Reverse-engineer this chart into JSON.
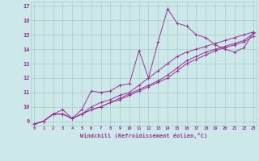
{
  "xlabel": "Windchill (Refroidissement éolien,°C)",
  "x_values": [
    0,
    1,
    2,
    3,
    4,
    5,
    6,
    7,
    8,
    9,
    10,
    11,
    12,
    13,
    14,
    15,
    16,
    17,
    18,
    19,
    20,
    21,
    22,
    23
  ],
  "series": [
    [
      8.8,
      9.0,
      9.5,
      9.8,
      9.2,
      9.8,
      11.1,
      11.0,
      11.1,
      11.5,
      11.6,
      13.9,
      12.0,
      14.5,
      16.8,
      15.8,
      15.6,
      15.0,
      14.8,
      14.3,
      14.0,
      13.8,
      14.1,
      15.2
    ],
    [
      8.8,
      9.0,
      9.5,
      9.5,
      9.2,
      9.5,
      10.0,
      10.3,
      10.5,
      10.8,
      11.0,
      11.5,
      12.0,
      12.5,
      13.0,
      13.5,
      13.8,
      14.0,
      14.2,
      14.4,
      14.6,
      14.8,
      15.0,
      15.2
    ],
    [
      8.8,
      9.0,
      9.5,
      9.5,
      9.2,
      9.5,
      9.8,
      10.0,
      10.3,
      10.6,
      10.9,
      11.2,
      11.5,
      11.8,
      12.2,
      12.7,
      13.2,
      13.5,
      13.8,
      14.0,
      14.2,
      14.4,
      14.6,
      15.1
    ],
    [
      8.8,
      9.0,
      9.5,
      9.5,
      9.2,
      9.5,
      9.8,
      10.0,
      10.3,
      10.5,
      10.8,
      11.1,
      11.4,
      11.7,
      12.0,
      12.5,
      13.0,
      13.3,
      13.6,
      13.9,
      14.1,
      14.3,
      14.5,
      14.9
    ]
  ],
  "line_color": "#993399",
  "bg_color": "#cce8e8",
  "grid_color": "#aacccc",
  "tick_label_color": "#993399",
  "ylim": [
    8.7,
    17.3
  ],
  "yticks": [
    9,
    10,
    11,
    12,
    13,
    14,
    15,
    16,
    17
  ],
  "xlim": [
    -0.3,
    23.3
  ]
}
